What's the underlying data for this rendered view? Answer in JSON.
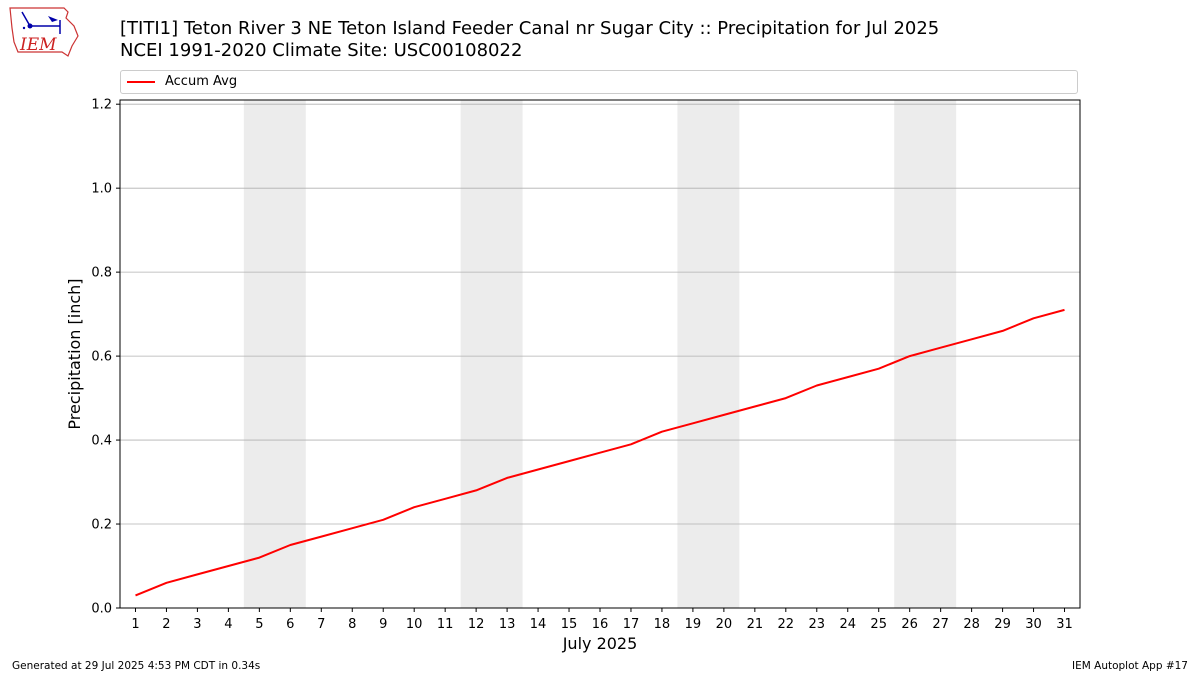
{
  "header": {
    "title_line1": "[TITI1] Teton River 3 NE Teton Island Feeder Canal nr Sugar City :: Precipitation for Jul 2025",
    "title_line2": "NCEI 1991-2020 Climate Site: USC00108022"
  },
  "logo": {
    "text": "IEM",
    "icon": "iem-logo-icon"
  },
  "footer": {
    "left": "Generated at 29 Jul 2025 4:53 PM CDT in 0.34s",
    "right": "IEM Autoplot App #17"
  },
  "colors": {
    "line": "#ff0000",
    "weekend_band": "#ececec",
    "grid": "#b0b0b0"
  },
  "chart_data": {
    "type": "line",
    "xlabel": "July 2025",
    "ylabel": "Precipitation [inch]",
    "xlim": [
      0.5,
      31.5
    ],
    "ylim": [
      0,
      1.21
    ],
    "yticks": [
      0.0,
      0.2,
      0.4,
      0.6,
      0.8,
      1.0,
      1.2
    ],
    "ytick_labels": [
      "0.0",
      "0.2",
      "0.4",
      "0.6",
      "0.8",
      "1.0",
      "1.2"
    ],
    "x": [
      1,
      2,
      3,
      4,
      5,
      6,
      7,
      8,
      9,
      10,
      11,
      12,
      13,
      14,
      15,
      16,
      17,
      18,
      19,
      20,
      21,
      22,
      23,
      24,
      25,
      26,
      27,
      28,
      29,
      30,
      31
    ],
    "xtick_labels": [
      "1",
      "2",
      "3",
      "4",
      "5",
      "6",
      "7",
      "8",
      "9",
      "10",
      "11",
      "12",
      "13",
      "14",
      "15",
      "16",
      "17",
      "18",
      "19",
      "20",
      "21",
      "22",
      "23",
      "24",
      "25",
      "26",
      "27",
      "28",
      "29",
      "30",
      "31"
    ],
    "shaded_days": [
      [
        5,
        6
      ],
      [
        12,
        13
      ],
      [
        19,
        20
      ],
      [
        26,
        27
      ]
    ],
    "grid": "horizontal",
    "legend_position": "top",
    "series": [
      {
        "name": "Accum Avg",
        "color": "#ff0000",
        "values": [
          0.03,
          0.06,
          0.08,
          0.1,
          0.12,
          0.15,
          0.17,
          0.19,
          0.21,
          0.24,
          0.26,
          0.28,
          0.31,
          0.33,
          0.35,
          0.37,
          0.39,
          0.42,
          0.44,
          0.46,
          0.48,
          0.5,
          0.53,
          0.55,
          0.57,
          0.6,
          0.62,
          0.64,
          0.66,
          0.69,
          0.71
        ]
      }
    ]
  }
}
